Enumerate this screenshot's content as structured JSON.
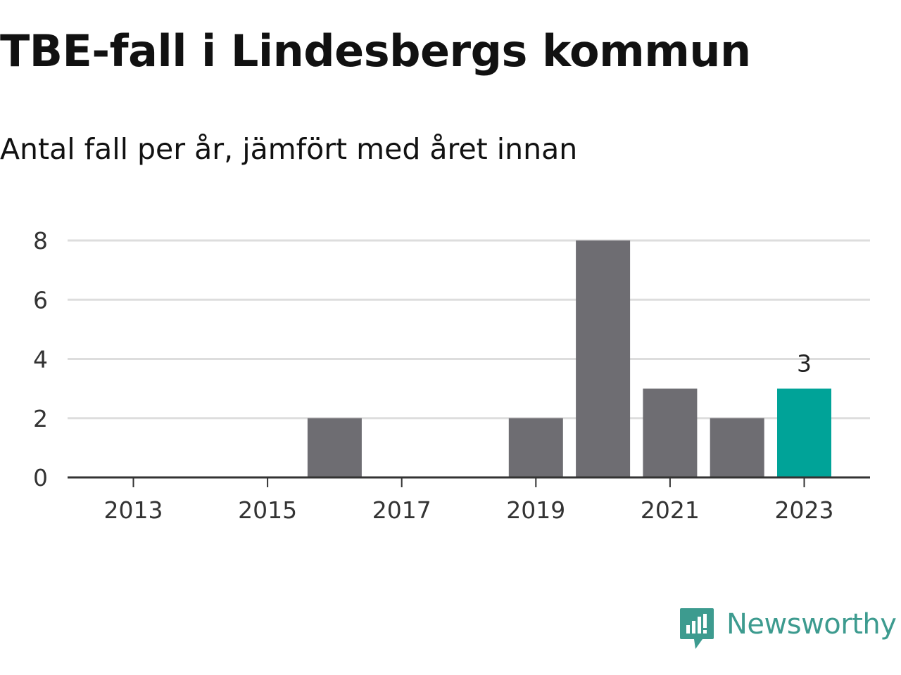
{
  "header": {
    "title": "TBE-fall i Lindesbergs kommun",
    "subtitle": "Antal fall per år, jämfört med året innan"
  },
  "brand": {
    "name": "Newsworthy",
    "icon": "newsworthy-logo-icon",
    "color": "#3d9b8f"
  },
  "chart_data": {
    "type": "bar",
    "x": [
      2013,
      2014,
      2015,
      2016,
      2017,
      2018,
      2019,
      2020,
      2021,
      2022,
      2023
    ],
    "values": [
      0,
      0,
      0,
      2,
      0,
      0,
      2,
      8,
      3,
      2,
      3
    ],
    "xticks": [
      "2013",
      "2015",
      "2017",
      "2019",
      "2021",
      "2023"
    ],
    "yticks": [
      0,
      2,
      4,
      6,
      8
    ],
    "ylim": [
      0,
      8.2
    ],
    "grid": true,
    "highlight": {
      "x": 2023,
      "label": "3",
      "color": "#00a398"
    },
    "bar_color": "#6e6d72",
    "grid_color": "#dddddd",
    "axis_color": "#333333"
  }
}
